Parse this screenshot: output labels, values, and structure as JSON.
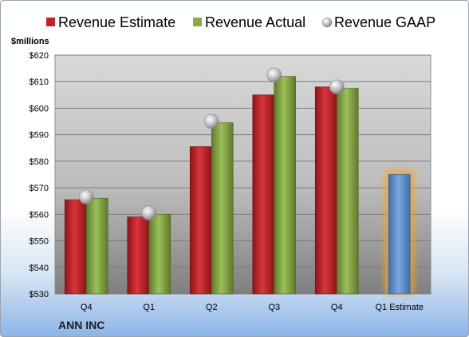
{
  "chart_data": {
    "type": "bar",
    "ylabel": "$millions",
    "company": "ANN INC",
    "categories": [
      "Q4",
      "Q1",
      "Q2",
      "Q3",
      "Q4",
      "Q1 Estimate"
    ],
    "ylim": [
      530,
      620
    ],
    "yticks": [
      "$530",
      "$540",
      "$550",
      "$560",
      "$570",
      "$580",
      "$590",
      "$600",
      "$610",
      "$620"
    ],
    "grid": true,
    "legend_position": "top",
    "series": [
      {
        "name": "Revenue Estimate",
        "kind": "bar",
        "color": "#c0242b",
        "values": [
          565.5,
          559,
          585.5,
          605,
          608,
          null
        ]
      },
      {
        "name": "Revenue Actual",
        "kind": "bar",
        "color": "#8aab4a",
        "values": [
          566,
          560,
          594.5,
          612,
          607.5,
          null
        ]
      },
      {
        "name": "Revenue GAAP",
        "kind": "marker",
        "color": "#bfbfbf",
        "values": [
          566.5,
          560.5,
          595,
          612.5,
          608,
          null
        ]
      }
    ],
    "forecast": {
      "category": "Q1 Estimate",
      "value": 575,
      "color": "#5b8fd0",
      "glow": "#f5a623"
    }
  }
}
